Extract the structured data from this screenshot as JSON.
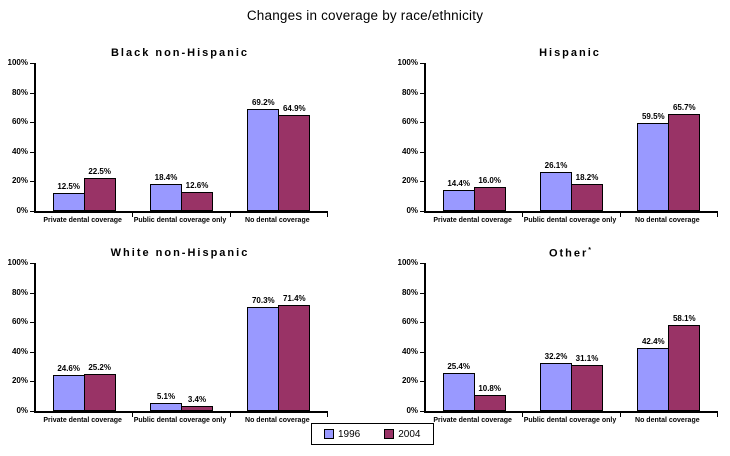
{
  "page_title": "Changes in coverage by race/ethnicity",
  "colors": {
    "series_1996": "#9999FF",
    "series_2004": "#993366",
    "axis": "#000000"
  },
  "legend": {
    "items": [
      {
        "label": "1996",
        "color": "#9999FF",
        "swatch": "square"
      },
      {
        "label": "2004",
        "color": "#993366",
        "swatch": "square"
      }
    ]
  },
  "chart_data": [
    {
      "type": "bar",
      "title": "Black non-Hispanic",
      "title_sup": "",
      "categories": [
        "Private dental coverage",
        "Public dental coverage only",
        "No dental coverage"
      ],
      "series": [
        {
          "name": "1996",
          "values": [
            12.5,
            18.4,
            69.2
          ]
        },
        {
          "name": "2004",
          "values": [
            22.5,
            12.6,
            64.9
          ]
        }
      ],
      "value_labels": [
        "12.5%",
        "18.4%",
        "69.2%",
        "22.5%",
        "12.6%",
        "64.9%"
      ],
      "ylabel": "",
      "xlabel": "",
      "ylim": [
        0,
        100
      ],
      "yticks": [
        0,
        20,
        40,
        60,
        80,
        100
      ],
      "ytick_format": "percent",
      "grid": false,
      "legend_position": "bottom-center-shared"
    },
    {
      "type": "bar",
      "title": "Hispanic",
      "title_sup": "",
      "categories": [
        "Private dental coverage",
        "Public dental coverage only",
        "No dental coverage"
      ],
      "series": [
        {
          "name": "1996",
          "values": [
            14.4,
            26.1,
            59.5
          ]
        },
        {
          "name": "2004",
          "values": [
            16.0,
            18.2,
            65.7
          ]
        }
      ],
      "value_labels": [
        "14.4%",
        "26.1%",
        "59.5%",
        "16.0%",
        "18.2%",
        "65.7%"
      ],
      "ylabel": "",
      "xlabel": "",
      "ylim": [
        0,
        100
      ],
      "yticks": [
        0,
        20,
        40,
        60,
        80,
        100
      ],
      "ytick_format": "percent",
      "grid": false,
      "legend_position": "bottom-center-shared"
    },
    {
      "type": "bar",
      "title": "White non-Hispanic",
      "title_sup": "",
      "categories": [
        "Private dental coverage",
        "Public dental coverage only",
        "No dental coverage"
      ],
      "series": [
        {
          "name": "1996",
          "values": [
            24.6,
            5.1,
            70.3
          ]
        },
        {
          "name": "2004",
          "values": [
            25.2,
            3.4,
            71.4
          ]
        }
      ],
      "value_labels": [
        "24.6%",
        "5.1%",
        "70.3%",
        "25.2%",
        "3.4%",
        "71.4%"
      ],
      "ylabel": "",
      "xlabel": "",
      "ylim": [
        0,
        100
      ],
      "yticks": [
        0,
        20,
        40,
        60,
        80,
        100
      ],
      "ytick_format": "percent",
      "grid": false,
      "legend_position": "bottom-center-shared"
    },
    {
      "type": "bar",
      "title": "Other",
      "title_sup": "*",
      "categories": [
        "Private dental coverage",
        "Public dental coverage only",
        "No dental coverage"
      ],
      "series": [
        {
          "name": "1996",
          "values": [
            25.4,
            32.2,
            42.4
          ]
        },
        {
          "name": "2004",
          "values": [
            10.8,
            31.1,
            58.1
          ]
        }
      ],
      "value_labels": [
        "25.4%",
        "32.2%",
        "42.4%",
        "10.8%",
        "31.1%",
        "58.1%"
      ],
      "ylabel": "",
      "xlabel": "",
      "ylim": [
        0,
        100
      ],
      "yticks": [
        0,
        20,
        40,
        60,
        80,
        100
      ],
      "ytick_format": "percent",
      "grid": false,
      "legend_position": "bottom-center-shared"
    }
  ]
}
